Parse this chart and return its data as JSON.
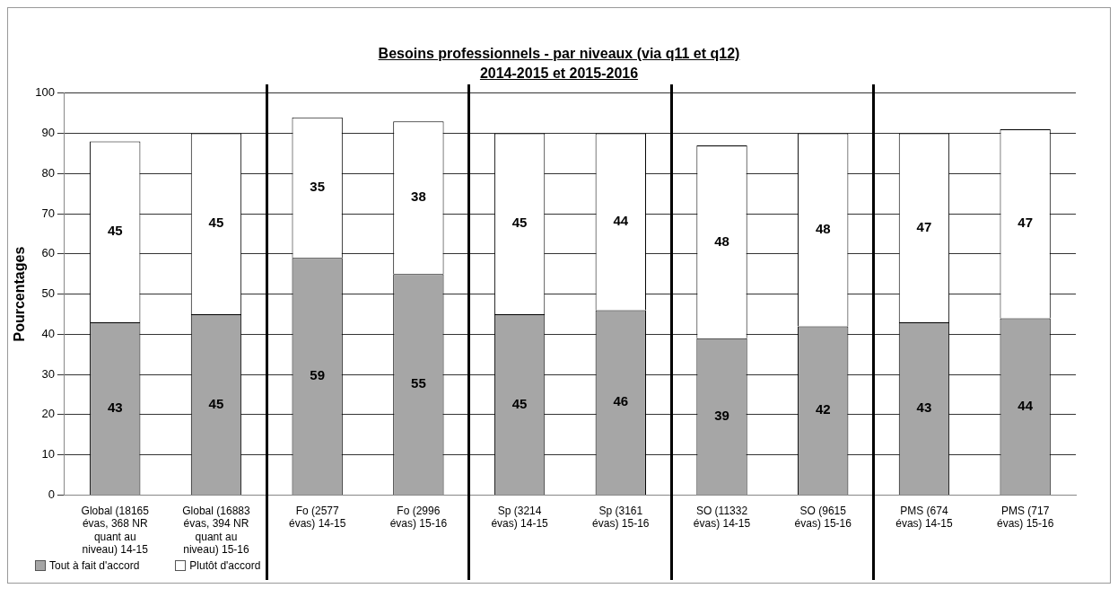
{
  "chart_data": {
    "type": "bar",
    "title": "Besoins professionnels - par niveaux (via q11 et q12)",
    "subtitle": "2014-2015 et 2015-2016",
    "ylabel": "Pourcentages",
    "categories": [
      "Global (18165 évas, 368 NR quant au niveau) 14-15",
      "Global (16883 évas, 394 NR quant au niveau) 15-16",
      "Fo (2577 évas) 14-15",
      "Fo (2996 évas) 15-16",
      "Sp (3214 évas) 14-15",
      "Sp (3161 évas) 15-16",
      "SO (11332 évas) 14-15",
      "SO (9615 évas) 15-16",
      "PMS (674 évas) 14-15",
      "PMS (717 évas) 15-16"
    ],
    "series": [
      {
        "name": "Tout à fait d'accord",
        "color": "#a6a6a6",
        "values": [
          43,
          45,
          59,
          55,
          45,
          46,
          39,
          42,
          43,
          44
        ]
      },
      {
        "name": "Plutôt d'accord",
        "color": "#ffffff",
        "values": [
          45,
          45,
          35,
          38,
          45,
          44,
          48,
          48,
          47,
          47
        ]
      }
    ],
    "stacked": true,
    "data_labels": true,
    "ylim": [
      0,
      100
    ],
    "yticks": [
      0,
      10,
      20,
      30,
      40,
      50,
      60,
      70,
      80,
      90,
      100
    ],
    "grid": "y",
    "legend": "bottom left"
  }
}
